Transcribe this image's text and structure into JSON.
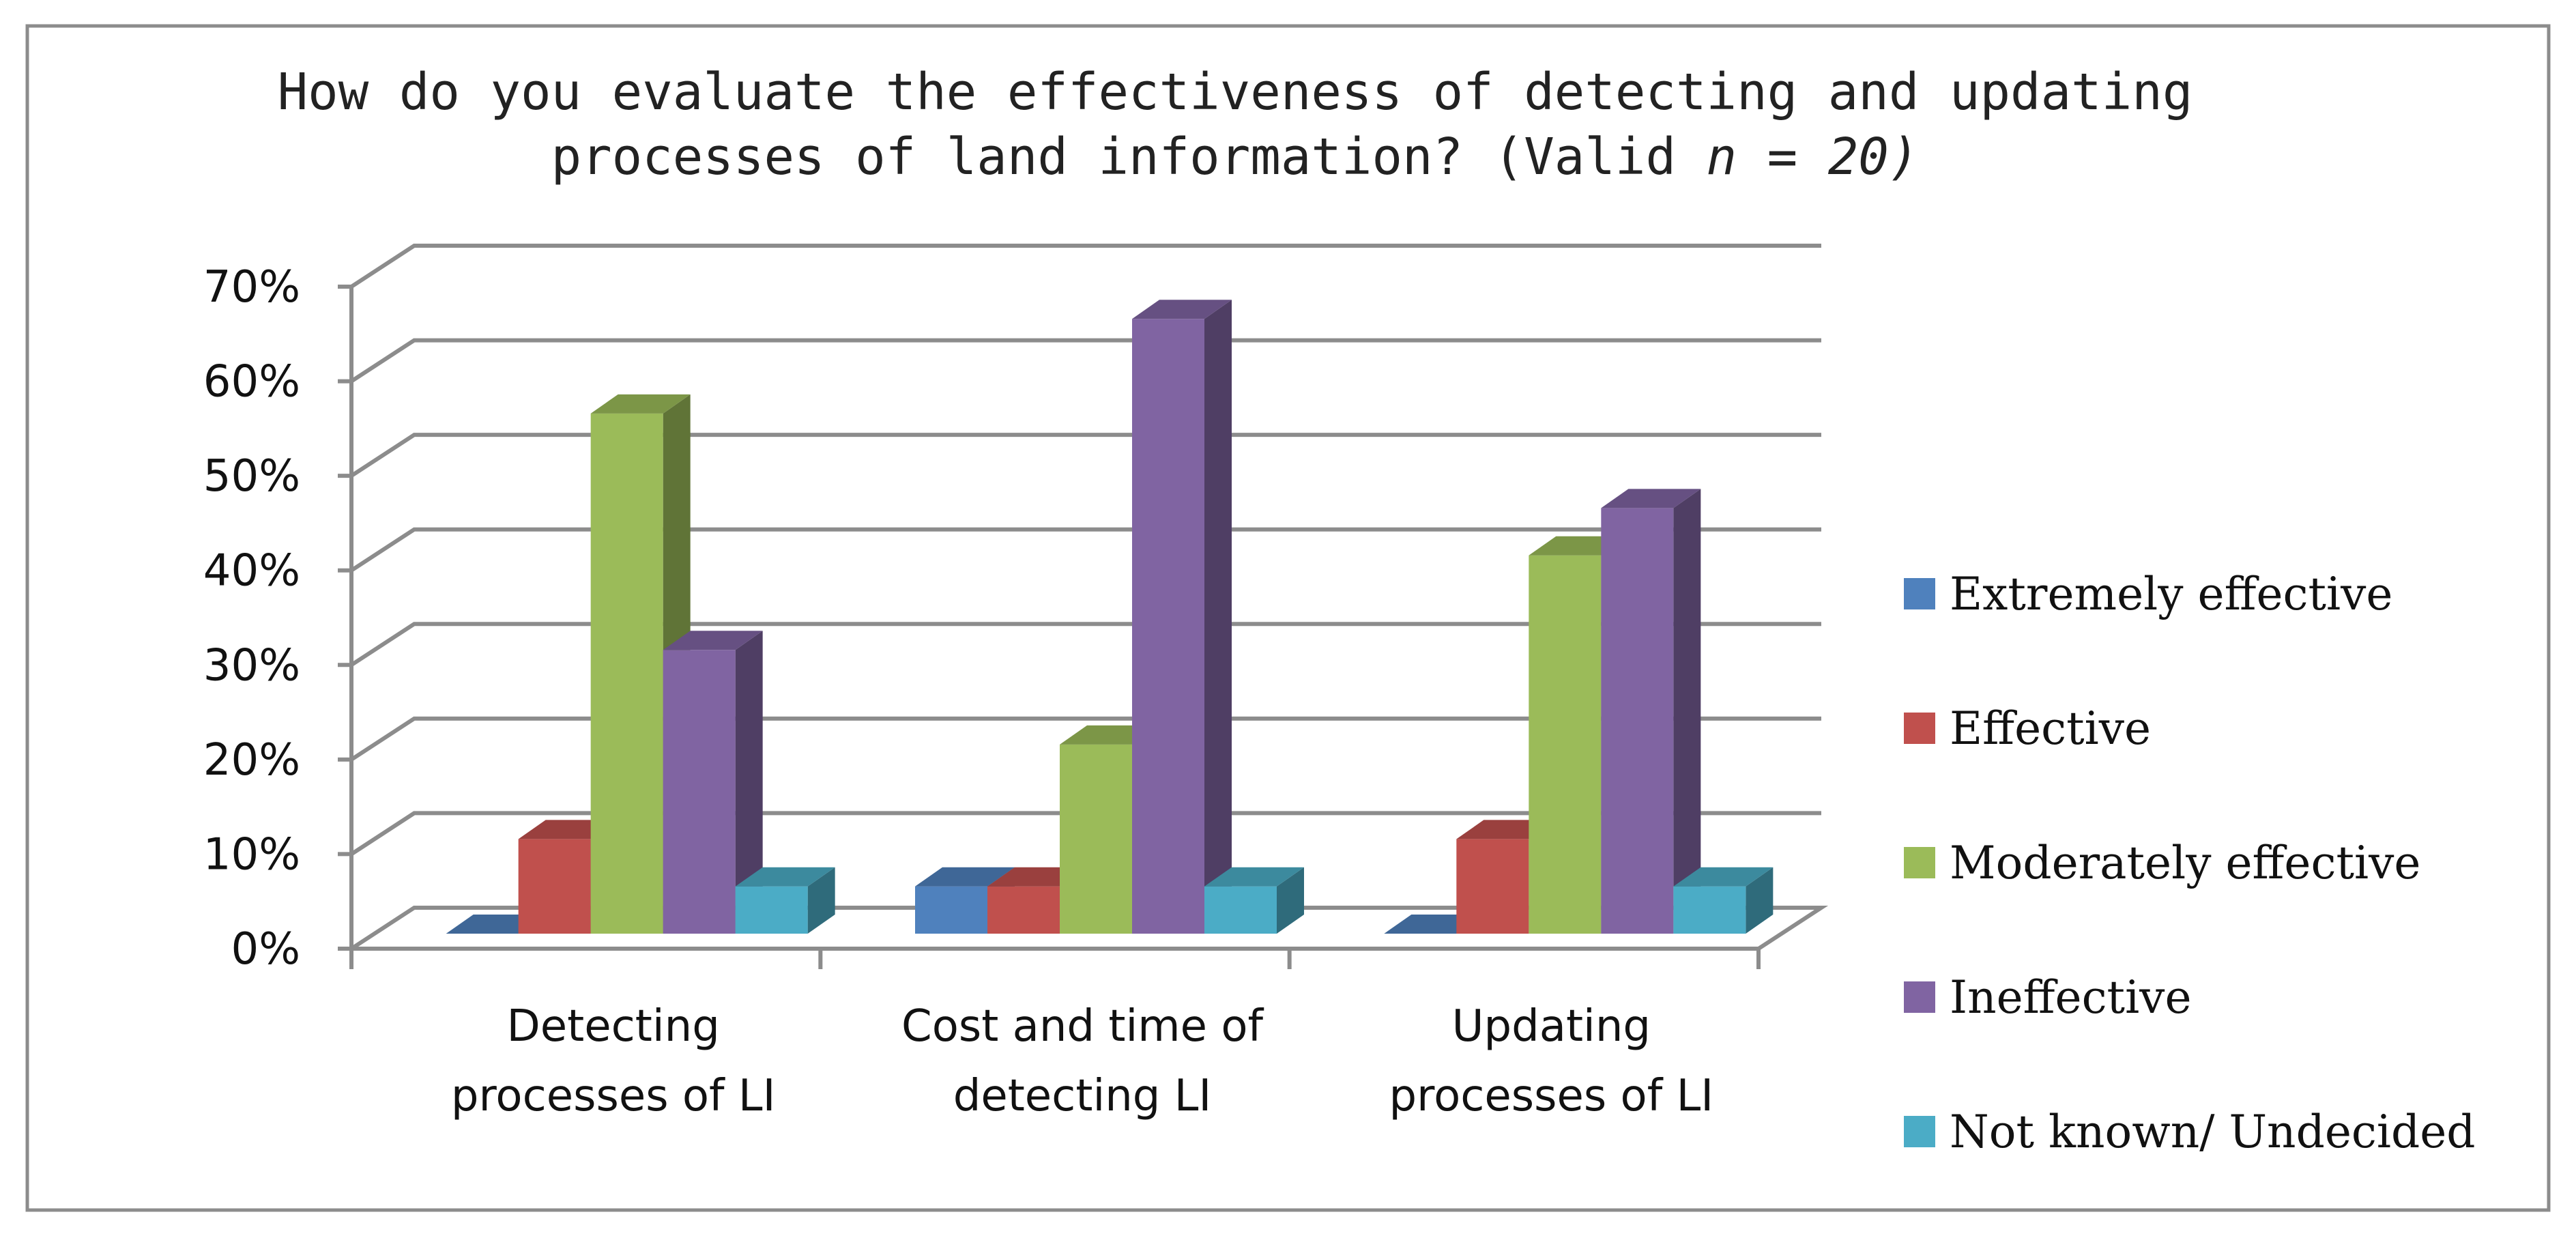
{
  "chart_data": {
    "type": "bar",
    "style": "3d-clustered-column",
    "title_line1": "How do you evaluate the effectiveness of detecting and updating",
    "title_line2_prefix": "processes of land information? (Valid ",
    "title_line2_n": "n = 20)",
    "categories": [
      [
        "Detecting",
        "processes of LI"
      ],
      [
        "Cost and time of",
        "detecting LI"
      ],
      [
        "Updating",
        "processes of LI"
      ]
    ],
    "series": [
      {
        "name": "Extremely effective",
        "color": "#4F81BD",
        "values": [
          0,
          5,
          0
        ]
      },
      {
        "name": "Effective",
        "color": "#C0504D",
        "values": [
          10,
          5,
          10
        ]
      },
      {
        "name": "Moderately effective",
        "color": "#9BBB59",
        "values": [
          55,
          20,
          40
        ]
      },
      {
        "name": "Ineffective",
        "color": "#8064A2",
        "values": [
          30,
          65,
          45
        ]
      },
      {
        "name": "Not known/ Undecided",
        "color": "#4BACC6",
        "values": [
          5,
          5,
          5
        ]
      }
    ],
    "yticks": [
      "0%",
      "10%",
      "20%",
      "30%",
      "40%",
      "50%",
      "60%",
      "70%"
    ],
    "ylim": [
      0,
      70
    ],
    "xlabel": "",
    "ylabel": "",
    "grid": true,
    "legend_position": "right"
  }
}
